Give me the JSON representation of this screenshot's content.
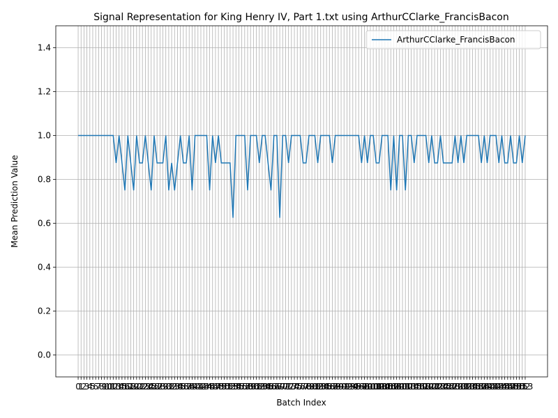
{
  "chart_data": {
    "type": "line",
    "title": "Signal Representation for King Henry IV, Part 1.txt using ArthurCClarke_FrancisBacon",
    "x_label": "Batch Index",
    "y_label": "Mean Prediction Value",
    "x": [
      0,
      1,
      2,
      3,
      4,
      5,
      6,
      7,
      8,
      9,
      10,
      11,
      12,
      13,
      14,
      15,
      16,
      17,
      18,
      19,
      20,
      21,
      22,
      23,
      24,
      25,
      26,
      27,
      28,
      29,
      30,
      31,
      32,
      33,
      34,
      35,
      36,
      37,
      38,
      39,
      40,
      41,
      42,
      43,
      44,
      45,
      46,
      47,
      48,
      49,
      50,
      51,
      52,
      53,
      54,
      55,
      56,
      57,
      58,
      59,
      60,
      61,
      62,
      63,
      64,
      65,
      66,
      67,
      68,
      69,
      70,
      71,
      72,
      73,
      74,
      75,
      76,
      77,
      78,
      79,
      80,
      81,
      82,
      83,
      84,
      85,
      86,
      87,
      88,
      89,
      90,
      91,
      92,
      93,
      94,
      95,
      96,
      97,
      98,
      99,
      100,
      101,
      102,
      103,
      104,
      105,
      106,
      107,
      108,
      109,
      110,
      111,
      112,
      113,
      114,
      115,
      116,
      117,
      118,
      119,
      120,
      121,
      122,
      123,
      124,
      125,
      126,
      127,
      128,
      129,
      130,
      131,
      132,
      133,
      134,
      135,
      136,
      137,
      138,
      139,
      140,
      141,
      142,
      143,
      144,
      145,
      146,
      147,
      148,
      149,
      150,
      151,
      152,
      153
    ],
    "series": [
      {
        "name": "ArthurCClarke_FrancisBacon",
        "color": "#1f77b4",
        "values": [
          1,
          1,
          1,
          1,
          1,
          1,
          1,
          1,
          1,
          1,
          1,
          1,
          1,
          0.875,
          1,
          0.875,
          0.75,
          1,
          0.875,
          0.75,
          1,
          0.875,
          0.875,
          1,
          0.875,
          0.75,
          1,
          0.875,
          0.875,
          0.875,
          1,
          0.75,
          0.875,
          0.75,
          0.875,
          1,
          0.875,
          0.875,
          1,
          0.75,
          1,
          1,
          1,
          1,
          1,
          0.75,
          1,
          0.875,
          1,
          0.875,
          0.875,
          0.875,
          0.875,
          0.625,
          1,
          1,
          1,
          1,
          0.75,
          1,
          1,
          1,
          0.875,
          1,
          1,
          0.875,
          0.75,
          1,
          1,
          0.625,
          1,
          1,
          0.875,
          1,
          1,
          1,
          1,
          0.875,
          0.875,
          1,
          1,
          1,
          0.875,
          1,
          1,
          1,
          1,
          0.875,
          1,
          1,
          1,
          1,
          1,
          1,
          1,
          1,
          1,
          0.875,
          1,
          0.875,
          1,
          1,
          0.875,
          0.875,
          1,
          1,
          1,
          0.75,
          1,
          0.75,
          1,
          1,
          0.75,
          1,
          1,
          0.875,
          1,
          1,
          1,
          1,
          0.875,
          1,
          0.875,
          0.875,
          1,
          0.875,
          0.875,
          0.875,
          0.875,
          1,
          0.875,
          1,
          0.875,
          1,
          1,
          1,
          1,
          1,
          0.875,
          1,
          0.875,
          1,
          1,
          1,
          0.875,
          1,
          0.875,
          0.875,
          1,
          0.875,
          0.875,
          1,
          0.875,
          1
        ]
      }
    ],
    "xlim": [
      -7.65,
      160.65
    ],
    "xticks": [
      0,
      1,
      2,
      3,
      4,
      5,
      6,
      7,
      8,
      9,
      10,
      11,
      12,
      13,
      14,
      15,
      16,
      17,
      18,
      19,
      20,
      21,
      22,
      23,
      24,
      25,
      26,
      27,
      28,
      29,
      30,
      31,
      32,
      33,
      34,
      35,
      36,
      37,
      38,
      39,
      40,
      41,
      42,
      43,
      44,
      45,
      46,
      47,
      48,
      49,
      50,
      51,
      52,
      53,
      54,
      55,
      56,
      57,
      58,
      59,
      60,
      61,
      62,
      63,
      64,
      65,
      66,
      67,
      68,
      69,
      70,
      71,
      72,
      73,
      74,
      75,
      76,
      77,
      78,
      79,
      80,
      81,
      82,
      83,
      84,
      85,
      86,
      87,
      88,
      89,
      90,
      91,
      92,
      93,
      94,
      95,
      96,
      97,
      98,
      99,
      100,
      101,
      102,
      103,
      104,
      105,
      106,
      107,
      108,
      109,
      110,
      111,
      112,
      113,
      114,
      115,
      116,
      117,
      118,
      119,
      120,
      121,
      122,
      123,
      124,
      125,
      126,
      127,
      128,
      129,
      130,
      131,
      132,
      133,
      134,
      135,
      136,
      137,
      138,
      139,
      140,
      141,
      142,
      143,
      144,
      145,
      146,
      147,
      148,
      149,
      150,
      151,
      152,
      153
    ],
    "ylim": [
      -0.1,
      1.5
    ],
    "yticks": [
      {
        "value": 0,
        "label": "0.0"
      },
      0.2,
      0.4,
      0.6,
      0.8,
      {
        "value": 1,
        "label": "1.0"
      },
      1.2,
      1.4
    ],
    "grid": true,
    "legend": "upper right"
  }
}
